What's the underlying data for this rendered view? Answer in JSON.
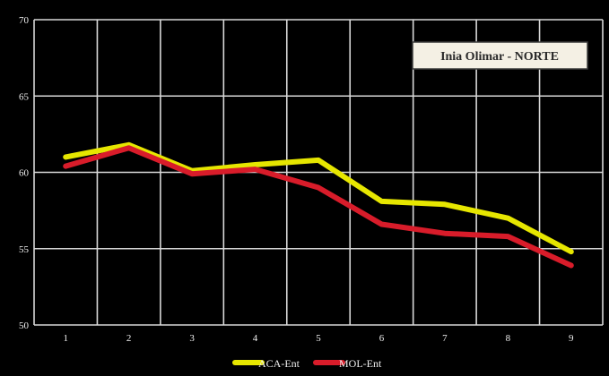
{
  "chart_data": {
    "type": "line",
    "title": "Inia Olimar - NORTE",
    "xlabel": "",
    "ylabel": "",
    "x": [
      1,
      2,
      3,
      4,
      5,
      6,
      7,
      8,
      9
    ],
    "x_tick_labels": [
      "1",
      "2",
      "3",
      "4",
      "5",
      "6",
      "7",
      "8",
      "9"
    ],
    "y_tick_labels": [
      "50",
      "55",
      "60",
      "65",
      "70"
    ],
    "ylim": [
      50,
      70
    ],
    "xlim": [
      0.5,
      9.5
    ],
    "grid": true,
    "legend_position": "bottom-center",
    "series": [
      {
        "name": "ACA-Ent",
        "color": "#e6e600",
        "values": [
          61.0,
          61.8,
          60.1,
          60.5,
          60.8,
          58.1,
          57.9,
          57.0,
          54.8
        ]
      },
      {
        "name": "MOL-Ent",
        "color": "#d81c2a",
        "values": [
          60.4,
          61.6,
          59.9,
          60.2,
          59.0,
          56.6,
          56.0,
          55.8,
          53.9
        ]
      }
    ]
  }
}
